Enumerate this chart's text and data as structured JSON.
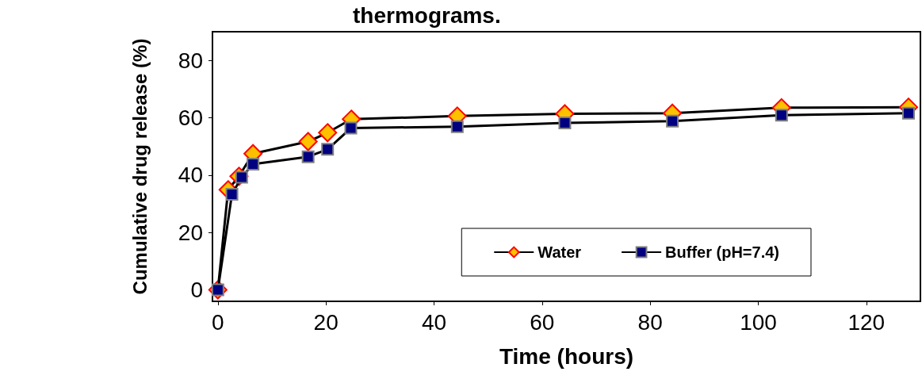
{
  "chart_data": {
    "type": "line",
    "title": "thermograms.",
    "xlabel": "Time (hours)",
    "ylabel": "Cumulative drug release (%)",
    "xlim": [
      -1,
      130
    ],
    "xticks": [
      0,
      20,
      40,
      60,
      80,
      100,
      120
    ],
    "ylim": [
      -4,
      90
    ],
    "yticks": [
      0,
      20,
      40,
      60,
      80
    ],
    "grid": false,
    "legend": "bottom right",
    "line_style": "solid",
    "series": [
      {
        "name": "Water",
        "color": "#ffc000",
        "marker": "diamond",
        "x": [
          0,
          1.9,
          3.9,
          6.5,
          16.7,
          20.3,
          24.7,
          44.3,
          64.2,
          84.1,
          104.3,
          127.8
        ],
        "values": [
          0,
          34.9,
          39.6,
          47.5,
          51.7,
          54.8,
          59.5,
          60.6,
          61.4,
          61.6,
          63.5,
          63.7
        ]
      },
      {
        "name": "Buffer (pH=7.4)",
        "color": "#000080",
        "marker": "square",
        "x": [
          0,
          2.6,
          4.4,
          6.5,
          16.7,
          20.3,
          24.6,
          44.3,
          64.2,
          84.1,
          104.3,
          127.8
        ],
        "values": [
          0,
          33.3,
          39.3,
          43.8,
          46.4,
          49,
          56.4,
          56.9,
          58.2,
          58.8,
          60.9,
          61.6
        ]
      }
    ]
  }
}
